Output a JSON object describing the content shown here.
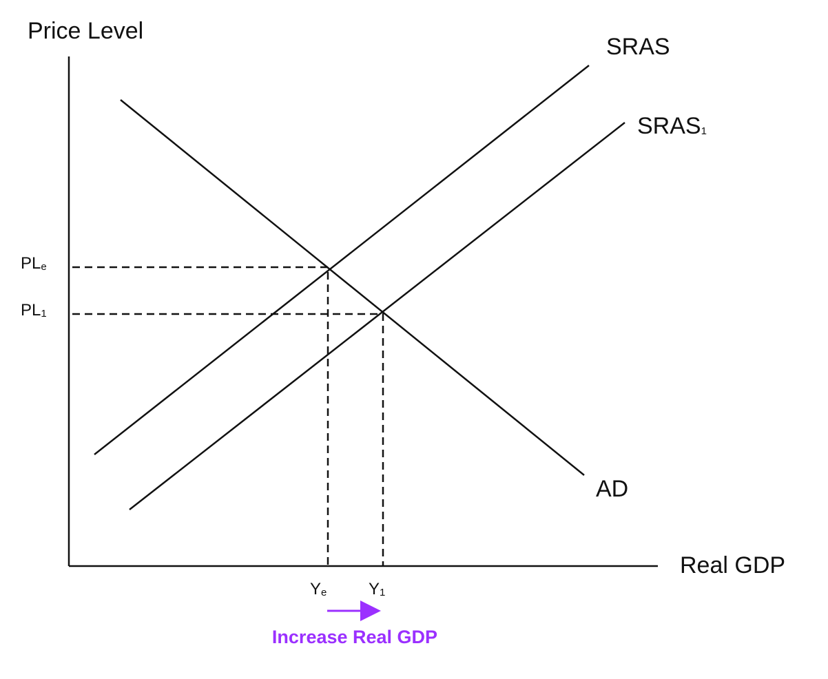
{
  "axes": {
    "y_label": "Price Level",
    "x_label": "Real GDP"
  },
  "curves": [
    {
      "label": "SRAS"
    },
    {
      "label": "SRAS",
      "subscript": "1"
    },
    {
      "label": "AD"
    }
  ],
  "y_levels": [
    {
      "label": "PL",
      "subscript": "e"
    },
    {
      "label": "PL",
      "subscript": "1"
    }
  ],
  "x_levels": [
    {
      "label": "Y",
      "subscript": "e"
    },
    {
      "label": "Y",
      "subscript": "1"
    }
  ],
  "annotation": "Increase Real GDP"
}
